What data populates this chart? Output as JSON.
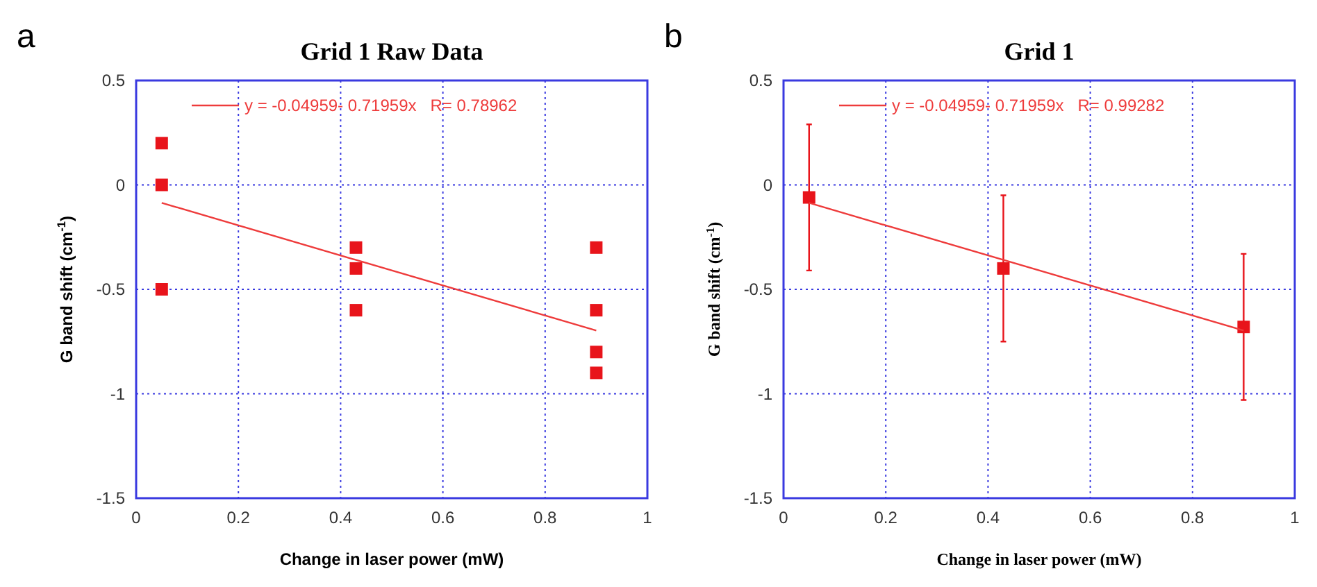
{
  "chart_data": [
    {
      "type": "scatter",
      "title": "Grid 1 Raw Data",
      "xlabel": "Change in laser power (mW)",
      "ylabel": "G band shift (cm$^{-1}$)",
      "annotations": [
        "a"
      ],
      "xlim": [
        0,
        1
      ],
      "ylim": [
        -1.5,
        0.5
      ],
      "xticks": [
        0,
        0.2,
        0.4,
        0.6,
        0.8,
        1
      ],
      "yticks": [
        -1.5,
        -1,
        -0.5,
        0,
        0.5
      ],
      "grid": true,
      "legend": "top",
      "series": [
        {
          "marker": "square",
          "color": "#e8141b",
          "x": [
            0.05,
            0.05,
            0.05,
            0.43,
            0.43,
            0.43,
            0.9,
            0.9,
            0.9,
            0.9
          ],
          "values": [
            0.2,
            0,
            -0.5,
            -0.3,
            -0.4,
            -0.6,
            -0.3,
            -0.6,
            -0.8,
            -0.9
          ]
        },
        {
          "type": "line",
          "name": "y = -0.04959- 0.71959x   R= 0.78962",
          "color": "#ee3b3b",
          "x": [
            0.05,
            0.9
          ],
          "values": [
            -0.086,
            -0.697
          ]
        }
      ]
    },
    {
      "type": "scatter",
      "title": "Grid 1",
      "xlabel": "Change in laser power (mW)",
      "ylabel": "G band shift (cm$^{-1}$)",
      "annotations": [
        "b"
      ],
      "xlim": [
        0,
        1
      ],
      "ylim": [
        -1.5,
        0.5
      ],
      "xticks": [
        0,
        0.2,
        0.4,
        0.6,
        0.8,
        1
      ],
      "yticks": [
        -1.5,
        -1,
        -0.5,
        0,
        0.5
      ],
      "grid": true,
      "legend": "top",
      "series": [
        {
          "marker": "square",
          "color": "#e8141b",
          "x": [
            0.05,
            0.43,
            0.9
          ],
          "values": [
            -0.06,
            -0.4,
            -0.68
          ],
          "errors": [
            0.35,
            0.35,
            0.35
          ]
        },
        {
          "type": "line",
          "name": "y = -0.04959- 0.71959x   R= 0.99282",
          "color": "#ee3b3b",
          "x": [
            0.05,
            0.9
          ],
          "values": [
            -0.086,
            -0.697
          ]
        }
      ]
    }
  ]
}
